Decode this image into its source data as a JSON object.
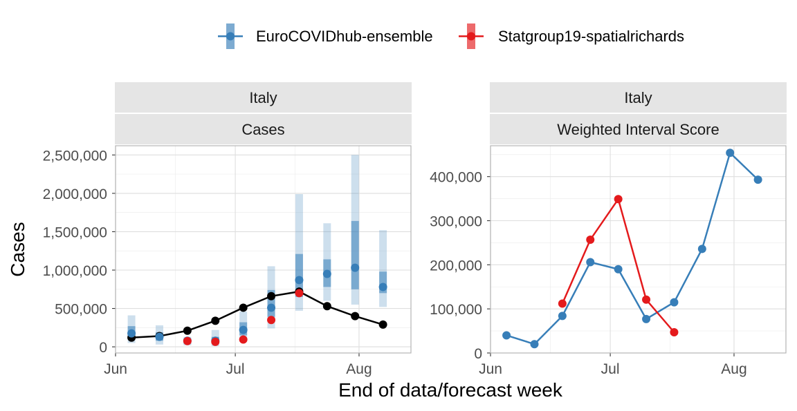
{
  "colors": {
    "ensemble": "#377EB8",
    "statgroup": "#E41A1C",
    "observed": "#000000",
    "strip_bg": "#E5E5E5",
    "panel_border": "#B3B3B3",
    "grid": "#EBEBEB"
  },
  "legend": {
    "position": "top",
    "items": [
      "EuroCOVIDhub-ensemble",
      "Statgroup19-spatialrichards"
    ]
  },
  "x_axis_title": "End of data/forecast week",
  "chart_data": [
    {
      "type": "line",
      "facet": [
        "Italy",
        "Cases"
      ],
      "ylabel": "Cases",
      "x_type": "date",
      "xlim": [
        "2021-06-01",
        "2021-08-14"
      ],
      "ylim": [
        -80000,
        2620000
      ],
      "x_ticks": [
        {
          "date": "2021-06-01",
          "label": "Jun"
        },
        {
          "date": "2021-07-01",
          "label": "Jul"
        },
        {
          "date": "2021-08-01",
          "label": "Aug"
        }
      ],
      "y_ticks": [
        {
          "value": 0,
          "label": "0"
        },
        {
          "value": 500000,
          "label": "500,000"
        },
        {
          "value": 1000000,
          "label": "1,000,000"
        },
        {
          "value": 1500000,
          "label": "1,500,000"
        },
        {
          "value": 2000000,
          "label": "2,000,000"
        },
        {
          "value": 2500000,
          "label": "2,500,000"
        }
      ],
      "grid": true,
      "observed": {
        "dates": [
          "2021-06-05",
          "2021-06-12",
          "2021-06-19",
          "2021-06-26",
          "2021-07-03",
          "2021-07-10",
          "2021-07-17",
          "2021-07-24",
          "2021-07-31",
          "2021-08-07"
        ],
        "values": [
          120000,
          140000,
          210000,
          340000,
          510000,
          660000,
          720000,
          530000,
          400000,
          290000
        ]
      },
      "series": [
        {
          "name": "EuroCOVIDhub-ensemble",
          "dates": [
            "2021-06-05",
            "2021-06-12",
            "2021-06-19",
            "2021-06-26",
            "2021-07-03",
            "2021-07-10",
            "2021-07-17",
            "2021-07-24",
            "2021-07-31",
            "2021-08-07"
          ],
          "median": [
            175000,
            130000,
            80000,
            80000,
            220000,
            510000,
            870000,
            950000,
            1030000,
            780000
          ],
          "outer_lower": [
            50000,
            30000,
            20000,
            10000,
            110000,
            240000,
            470000,
            600000,
            550000,
            520000
          ],
          "outer_upper": [
            410000,
            280000,
            130000,
            220000,
            460000,
            1050000,
            1990000,
            1610000,
            2500000,
            1520000
          ],
          "inner_lower": [
            100000,
            80000,
            40000,
            50000,
            150000,
            390000,
            650000,
            780000,
            750000,
            700000
          ],
          "inner_upper": [
            270000,
            190000,
            110000,
            130000,
            320000,
            740000,
            1210000,
            1140000,
            1640000,
            980000
          ]
        },
        {
          "name": "Statgroup19-spatialrichards",
          "dates": [
            "2021-06-19",
            "2021-06-26",
            "2021-07-03",
            "2021-07-10",
            "2021-07-17"
          ],
          "median": [
            75000,
            65000,
            95000,
            350000,
            700000
          ]
        }
      ]
    },
    {
      "type": "line",
      "facet": [
        "Italy",
        "Weighted Interval Score"
      ],
      "ylabel": "",
      "x_type": "date",
      "xlim": [
        "2021-06-01",
        "2021-08-14"
      ],
      "ylim": [
        0,
        470000
      ],
      "x_ticks": [
        {
          "date": "2021-06-01",
          "label": "Jun"
        },
        {
          "date": "2021-07-01",
          "label": "Jul"
        },
        {
          "date": "2021-08-01",
          "label": "Aug"
        }
      ],
      "y_ticks": [
        {
          "value": 0,
          "label": "0"
        },
        {
          "value": 100000,
          "label": "100,000"
        },
        {
          "value": 200000,
          "label": "200,000"
        },
        {
          "value": 300000,
          "label": "300,000"
        },
        {
          "value": 400000,
          "label": "400,000"
        }
      ],
      "grid": true,
      "series": [
        {
          "name": "EuroCOVIDhub-ensemble",
          "dates": [
            "2021-06-05",
            "2021-06-12",
            "2021-06-19",
            "2021-06-26",
            "2021-07-03",
            "2021-07-10",
            "2021-07-17",
            "2021-07-24",
            "2021-07-31",
            "2021-08-07"
          ],
          "values": [
            40000,
            20000,
            84000,
            206000,
            190000,
            77000,
            115000,
            236000,
            454000,
            393000
          ]
        },
        {
          "name": "Statgroup19-spatialrichards",
          "dates": [
            "2021-06-19",
            "2021-06-26",
            "2021-07-03",
            "2021-07-10",
            "2021-07-17"
          ],
          "values": [
            112000,
            257000,
            349000,
            121000,
            47000
          ]
        }
      ]
    }
  ]
}
